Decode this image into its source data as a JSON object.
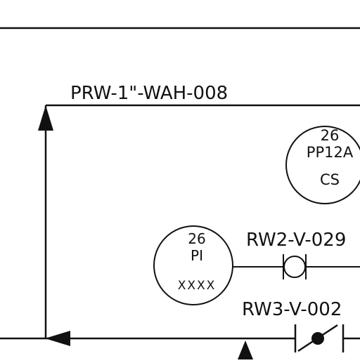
{
  "line_label": "PRW-1\"-WAH-008",
  "instruments": [
    {
      "number": "26",
      "tag": "PP12A",
      "sub": "CS"
    },
    {
      "number": "26",
      "tag": "PI",
      "sub": "XXXX"
    }
  ],
  "valves": [
    {
      "tag": "RW2-V-029"
    },
    {
      "tag": "RW3-V-002"
    }
  ]
}
